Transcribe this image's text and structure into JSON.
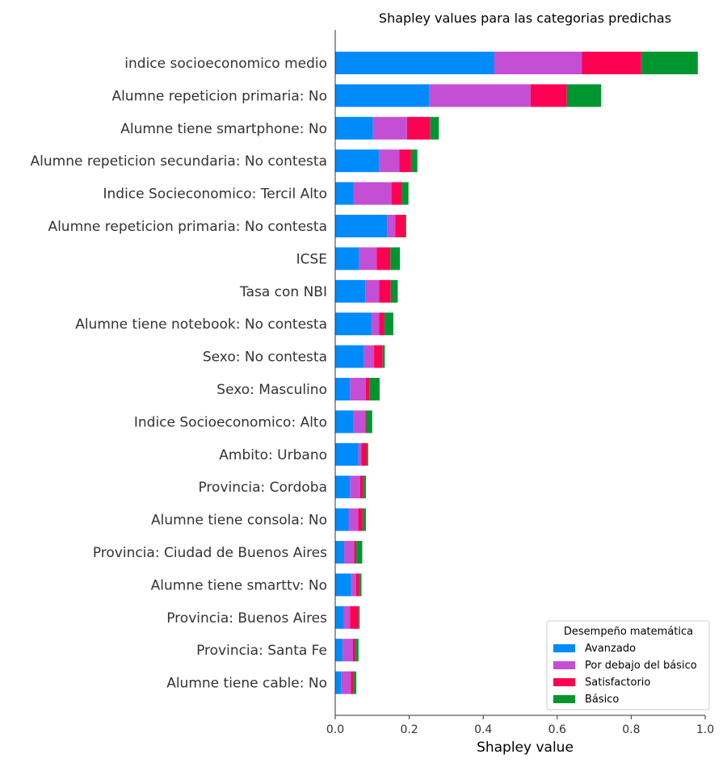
{
  "chart_data": {
    "type": "bar",
    "orientation": "horizontal",
    "stacked": true,
    "title": "Shapley values para las categorias predichas",
    "xlabel": "Shapley value",
    "ylabel": "",
    "xlim": [
      0,
      1.0
    ],
    "xticks": [
      "0.0",
      "0.2",
      "0.4",
      "0.6",
      "0.8",
      "1.0"
    ],
    "xtick_values": [
      0,
      0.2,
      0.4,
      0.6,
      0.8,
      1.0
    ],
    "grid": false,
    "legend": {
      "title": "Desempeño matemática",
      "placement": "bottom-right"
    },
    "categories": [
      "indice socioeconomico medio",
      "Alumne repeticion primaria: No",
      "Alumne tiene smartphone: No",
      "Alumne repeticion secundaria: No contesta",
      "Indice Socieconomico: Tercil Alto",
      "Alumne repeticion primaria: No contesta",
      "ICSE",
      "Tasa con NBI",
      "Alumne tiene notebook: No contesta",
      "Sexo: No contesta",
      "Sexo: Masculino",
      "Indice Socioeconomico: Alto",
      "Ambito: Urbano",
      "Provincia: Cordoba",
      "Alumne tiene consola: No",
      "Provincia: Ciudad de Buenos Aires",
      "Alumne tiene smarttv: No",
      "Provincia: Buenos Aires",
      "Provincia: Santa Fe",
      "Alumne tiene cable: No"
    ],
    "series": [
      {
        "name": "Avanzado",
        "color": "#008bfb",
        "values": [
          0.43,
          0.255,
          0.102,
          0.118,
          0.05,
          0.14,
          0.065,
          0.081,
          0.098,
          0.078,
          0.04,
          0.049,
          0.063,
          0.04,
          0.036,
          0.024,
          0.043,
          0.023,
          0.02,
          0.016
        ]
      },
      {
        "name": "Por debajo del básico",
        "color": "#c54fd4",
        "values": [
          0.237,
          0.273,
          0.092,
          0.055,
          0.102,
          0.022,
          0.047,
          0.038,
          0.021,
          0.027,
          0.043,
          0.033,
          0.008,
          0.027,
          0.026,
          0.027,
          0.013,
          0.017,
          0.028,
          0.026
        ]
      },
      {
        "name": "Satisfactorio",
        "color": "#ff0052",
        "values": [
          0.16,
          0.098,
          0.063,
          0.032,
          0.028,
          0.027,
          0.037,
          0.031,
          0.014,
          0.023,
          0.009,
          0.002,
          0.014,
          0.008,
          0.012,
          0.006,
          0.009,
          0.023,
          0.007,
          0.007
        ]
      },
      {
        "name": "Básico",
        "color": "#00962f",
        "values": [
          0.153,
          0.093,
          0.023,
          0.017,
          0.018,
          0.003,
          0.026,
          0.019,
          0.024,
          0.006,
          0.028,
          0.016,
          0.004,
          0.008,
          0.009,
          0.016,
          0.006,
          0.003,
          0.008,
          0.008
        ]
      }
    ]
  }
}
